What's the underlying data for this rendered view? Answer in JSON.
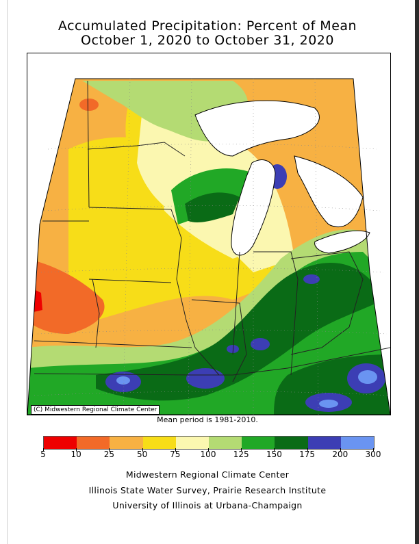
{
  "title_line1": "Accumulated Precipitation: Percent of Mean",
  "title_line2": "October 1, 2020 to October 31, 2020",
  "copyright": "(C) Midwestern Regional Climate Center",
  "mean_period": "Mean period is 1981-2010.",
  "legend": {
    "ticks": [
      "5",
      "10",
      "25",
      "50",
      "75",
      "100",
      "125",
      "150",
      "175",
      "200",
      "300"
    ],
    "colors": [
      "#ee0000",
      "#f26a28",
      "#f7b143",
      "#f7dd18",
      "#fbf7b0",
      "#b4db73",
      "#21a826",
      "#0a6b16",
      "#3c3eb4",
      "#6a94f1"
    ]
  },
  "credits": [
    "Midwestern Regional Climate Center",
    "Illinois State Water Survey, Prairie Research Institute",
    "University of Illinois at Urbana-Champaign"
  ],
  "map_colors": {
    "lake": "#ffffff",
    "outside": "#ffffff"
  }
}
